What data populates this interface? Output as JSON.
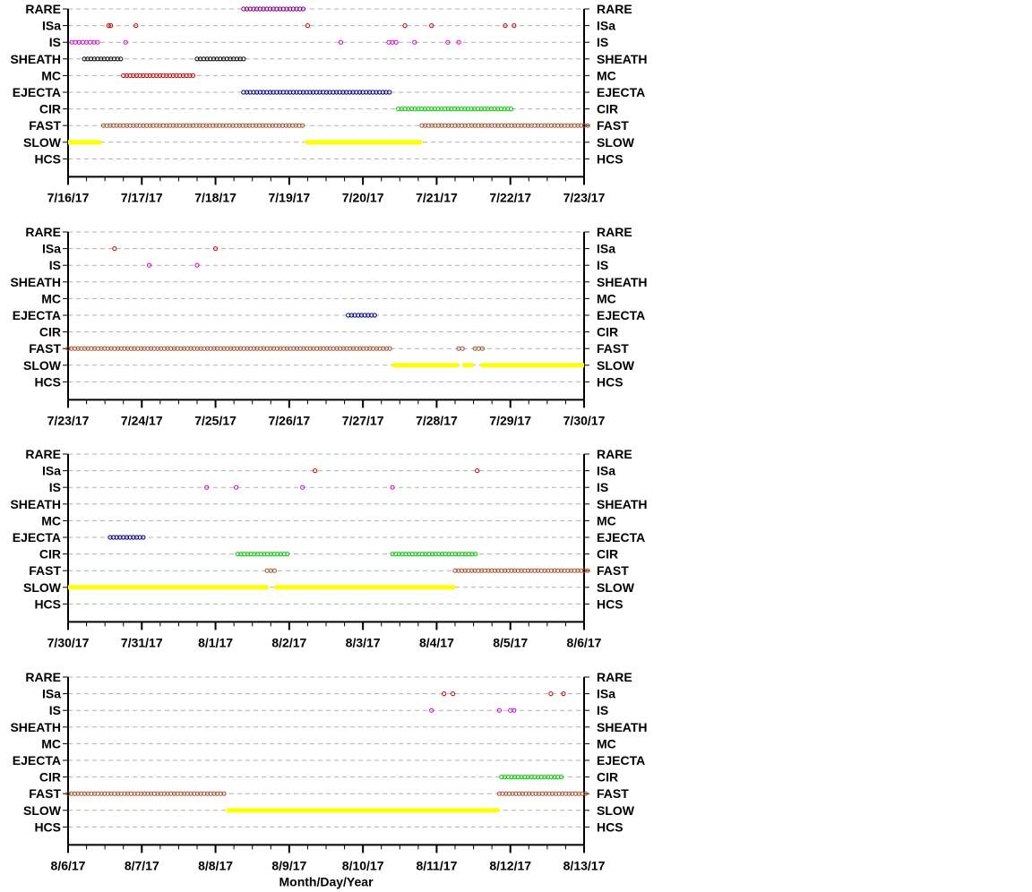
{
  "xlabel": "Month/Day/Year",
  "categories": [
    "RARE",
    "ISa",
    "IS",
    "SHEATH",
    "MC",
    "EJECTA",
    "CIR",
    "FAST",
    "SLOW",
    "HCS"
  ],
  "colors": {
    "RARE": "#800080",
    "ISa": "#cc0000",
    "IS": "#cc00cc",
    "SHEATH": "#000000",
    "MC": "#cc0000",
    "EJECTA": "#000080",
    "CIR": "#00cc00",
    "FAST": "#a0522d",
    "SLOW": "#ffff00",
    "grid": "#b0b0b0"
  },
  "chart_data": [
    {
      "type": "scatter",
      "xlabel": "",
      "x_range_days": [
        0,
        7
      ],
      "x_ticks": [
        "7/16/17",
        "7/17/17",
        "7/18/17",
        "7/19/17",
        "7/20/17",
        "7/21/17",
        "7/22/17",
        "7/23/17"
      ],
      "events": [
        {
          "category": "RARE",
          "kind": "run",
          "start": 2.38,
          "end": 3.2
        },
        {
          "category": "ISa",
          "kind": "points",
          "x": [
            0.55,
            0.58,
            0.92,
            3.25,
            4.57,
            4.93,
            5.93,
            6.05
          ]
        },
        {
          "category": "IS",
          "kind": "points",
          "x": [
            0.05,
            0.1,
            0.15,
            0.2,
            0.25,
            0.3,
            0.35,
            0.4,
            0.78,
            3.7,
            4.35,
            4.4,
            4.45,
            4.7,
            5.15,
            5.3
          ]
        },
        {
          "category": "SHEATH",
          "kind": "run",
          "start": 0.22,
          "end": 0.72
        },
        {
          "category": "SHEATH",
          "kind": "run",
          "start": 1.75,
          "end": 2.38
        },
        {
          "category": "MC",
          "kind": "run",
          "start": 0.75,
          "end": 1.72
        },
        {
          "category": "EJECTA",
          "kind": "run",
          "start": 2.38,
          "end": 4.4
        },
        {
          "category": "CIR",
          "kind": "run",
          "start": 4.48,
          "end": 6.05
        },
        {
          "category": "FAST",
          "kind": "run",
          "start": 0.48,
          "end": 3.22
        },
        {
          "category": "FAST",
          "kind": "run",
          "start": 4.8,
          "end": 7.05
        },
        {
          "category": "SLOW",
          "kind": "bar",
          "start": 0.0,
          "end": 0.45
        },
        {
          "category": "SLOW",
          "kind": "bar",
          "start": 3.22,
          "end": 4.8
        }
      ]
    },
    {
      "type": "scatter",
      "xlabel": "",
      "x_range_days": [
        0,
        7
      ],
      "x_ticks": [
        "7/23/17",
        "7/24/17",
        "7/25/17",
        "7/26/17",
        "7/27/17",
        "7/28/17",
        "7/29/17",
        "7/30/17"
      ],
      "events": [
        {
          "category": "ISa",
          "kind": "points",
          "x": [
            0.63,
            2.0
          ]
        },
        {
          "category": "IS",
          "kind": "points",
          "x": [
            1.1,
            1.75
          ]
        },
        {
          "category": "EJECTA",
          "kind": "run",
          "start": 3.8,
          "end": 4.2
        },
        {
          "category": "FAST",
          "kind": "run",
          "start": 0.0,
          "end": 4.4
        },
        {
          "category": "FAST",
          "kind": "points",
          "x": [
            5.3,
            5.35,
            5.52,
            5.57,
            5.62
          ]
        },
        {
          "category": "SLOW",
          "kind": "bar",
          "start": 4.4,
          "end": 5.3
        },
        {
          "category": "SLOW",
          "kind": "bar",
          "start": 5.35,
          "end": 5.5
        },
        {
          "category": "SLOW",
          "kind": "bar",
          "start": 5.6,
          "end": 7.0
        }
      ]
    },
    {
      "type": "scatter",
      "xlabel": "",
      "x_range_days": [
        0,
        7
      ],
      "x_ticks": [
        "7/30/17",
        "7/31/17",
        "8/1/17",
        "8/2/17",
        "8/3/17",
        "8/4/17",
        "8/5/17",
        "8/6/17"
      ],
      "events": [
        {
          "category": "ISa",
          "kind": "points",
          "x": [
            3.35,
            5.55
          ]
        },
        {
          "category": "IS",
          "kind": "points",
          "x": [
            1.88,
            2.28,
            3.18,
            4.4
          ]
        },
        {
          "category": "EJECTA",
          "kind": "run",
          "start": 0.57,
          "end": 1.05
        },
        {
          "category": "CIR",
          "kind": "run",
          "start": 2.3,
          "end": 3.0
        },
        {
          "category": "CIR",
          "kind": "run",
          "start": 4.4,
          "end": 5.55
        },
        {
          "category": "FAST",
          "kind": "points",
          "x": [
            2.7,
            2.75,
            2.8
          ]
        },
        {
          "category": "FAST",
          "kind": "run",
          "start": 5.25,
          "end": 7.05
        },
        {
          "category": "SLOW",
          "kind": "bar",
          "start": 0.0,
          "end": 2.72
        },
        {
          "category": "SLOW",
          "kind": "bar",
          "start": 2.8,
          "end": 5.25
        }
      ]
    },
    {
      "type": "scatter",
      "xlabel": "Month/Day/Year",
      "x_range_days": [
        0,
        7
      ],
      "x_ticks": [
        "8/6/17",
        "8/7/17",
        "8/8/17",
        "8/9/17",
        "8/10/17",
        "8/11/17",
        "8/12/17",
        "8/13/17"
      ],
      "events": [
        {
          "category": "ISa",
          "kind": "points",
          "x": [
            5.1,
            5.22,
            6.55,
            6.72
          ]
        },
        {
          "category": "IS",
          "kind": "points",
          "x": [
            4.93,
            5.85,
            6.0,
            6.05
          ]
        },
        {
          "category": "CIR",
          "kind": "run",
          "start": 5.88,
          "end": 6.72
        },
        {
          "category": "FAST",
          "kind": "run",
          "start": 0.0,
          "end": 2.15
        },
        {
          "category": "FAST",
          "kind": "run",
          "start": 5.85,
          "end": 7.05
        },
        {
          "category": "SLOW",
          "kind": "bar",
          "start": 2.15,
          "end": 5.85
        }
      ]
    }
  ]
}
